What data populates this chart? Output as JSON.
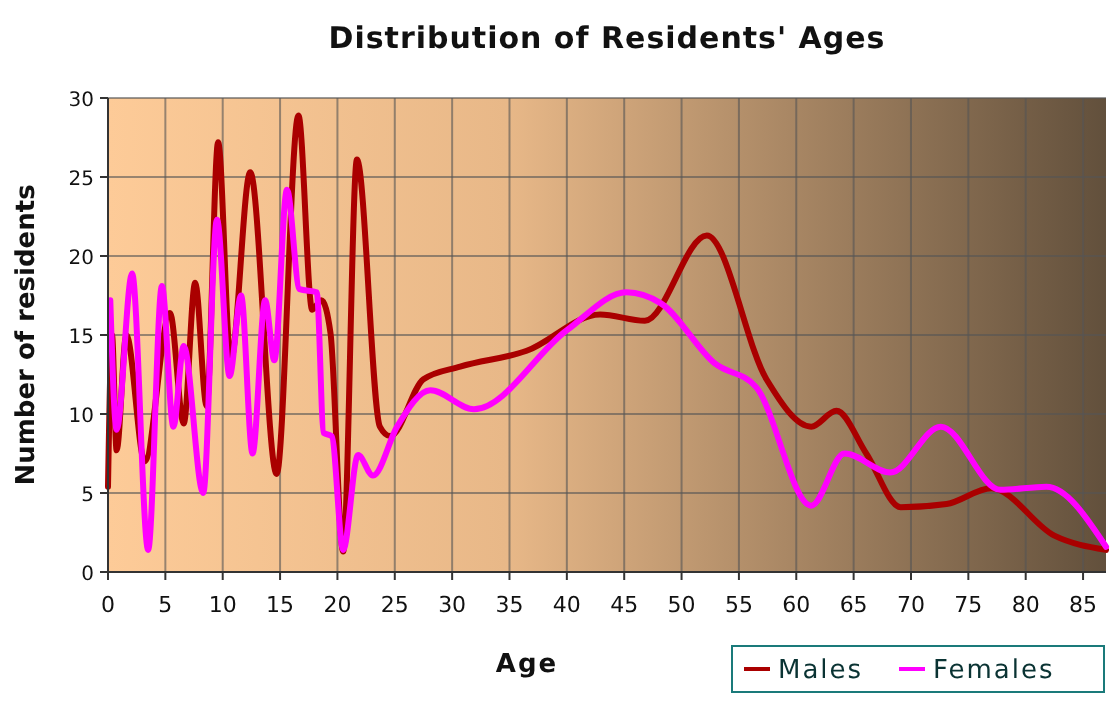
{
  "chart_data": {
    "type": "line",
    "title": "Distribution of Residents' Ages",
    "xlabel": "Age",
    "ylabel": "Number of residents",
    "xlim": [
      0,
      87
    ],
    "xticks": [
      0,
      5,
      10,
      15,
      20,
      25,
      30,
      35,
      40,
      45,
      50,
      55,
      60,
      65,
      70,
      75,
      80,
      85
    ],
    "ylim": [
      0,
      30
    ],
    "yticks": [
      0,
      5,
      10,
      15,
      20,
      25,
      30
    ],
    "grid": true,
    "legend": "bottom right",
    "series": [
      {
        "name": "Males",
        "color": "#aa0000",
        "x": [
          0,
          0.35,
          0.75,
          1.6,
          3.2,
          5.4,
          6.6,
          7.6,
          8.6,
          9.6,
          10.7,
          12.4,
          14.7,
          16.6,
          17.8,
          18.6,
          19.4,
          20.5,
          21.7,
          23.7,
          24.6,
          27.5,
          30.7,
          36.5,
          42.9,
          46.8,
          52.2,
          57.4,
          61.3,
          63.5,
          66.1,
          69.1,
          73.1,
          77,
          82.5,
          87
        ],
        "values": [
          5.4,
          15,
          7.7,
          15,
          7,
          16.4,
          9.4,
          18.3,
          10.5,
          27.2,
          13.4,
          25.3,
          6.2,
          28.9,
          16.6,
          17.2,
          15.1,
          1.3,
          26.1,
          9.2,
          8.6,
          12.2,
          13,
          14,
          16.3,
          15.9,
          21.3,
          12.2,
          9.2,
          10.2,
          7.5,
          4.1,
          4.3,
          5.3,
          2.3,
          1.4
        ]
      },
      {
        "name": "Females",
        "color": "#ff00ff",
        "x": [
          0.2,
          0.75,
          2.1,
          3.5,
          4.7,
          5.7,
          6.6,
          8.3,
          9.5,
          10.6,
          11.6,
          12.6,
          13.7,
          14.5,
          15.6,
          16.7,
          18.2,
          18.8,
          19.5,
          20.5,
          21.8,
          23.1,
          25.2,
          28.1,
          31.9,
          40,
          45.2,
          48.2,
          52.9,
          56.5,
          61.3,
          64.2,
          68.2,
          72.6,
          77.8,
          81.8,
          87
        ],
        "values": [
          17.2,
          9,
          18.9,
          1.4,
          18.1,
          9.2,
          14.3,
          5,
          22.3,
          12.4,
          17.5,
          7.5,
          17.2,
          13.4,
          24.2,
          17.9,
          17.7,
          8.8,
          8.6,
          1.4,
          7.4,
          6.1,
          9.2,
          11.5,
          10.3,
          15.3,
          17.7,
          17,
          13.2,
          11.7,
          4.2,
          7.5,
          6.3,
          9.2,
          5.2,
          5.4,
          1.6
        ]
      }
    ]
  }
}
